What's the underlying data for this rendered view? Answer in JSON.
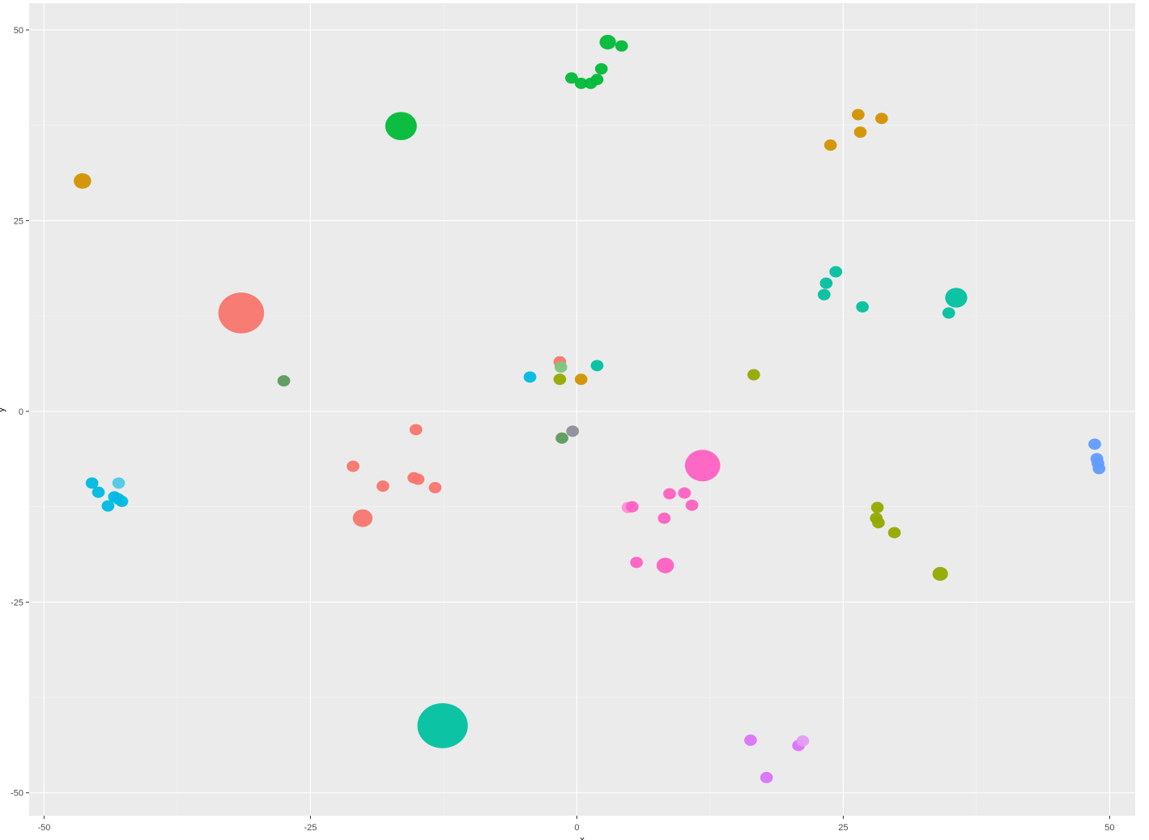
{
  "chart_data": {
    "type": "scatter",
    "xlabel": "x",
    "ylabel": "y",
    "xlim": [
      -51.4,
      52.4
    ],
    "ylim": [
      -53.0,
      53.5
    ],
    "x_ticks": [
      -50,
      -25,
      0,
      25,
      50
    ],
    "y_ticks": [
      -50,
      -25,
      0,
      25,
      50
    ],
    "x_tick_labels": [
      "-50",
      "-25",
      "0",
      "25",
      "50"
    ],
    "y_tick_labels": [
      "-50",
      "-25",
      "0",
      "25",
      "50"
    ],
    "grid": true,
    "panel_background": "#ebebeb",
    "grid_color": "#ffffff",
    "legend": "none",
    "points": [
      {
        "x": -31.5,
        "y": 12.9,
        "size": 1.0,
        "color": "#F8766D"
      },
      {
        "x": -20.1,
        "y": -14.0,
        "size": 0.45,
        "color": "#F8766D"
      },
      {
        "x": -21.0,
        "y": -7.2,
        "size": 0.3,
        "color": "#F8766D"
      },
      {
        "x": -18.2,
        "y": -9.8,
        "size": 0.3,
        "color": "#F8766D"
      },
      {
        "x": -15.1,
        "y": -2.4,
        "size": 0.3,
        "color": "#F8766D"
      },
      {
        "x": -15.3,
        "y": -8.7,
        "size": 0.3,
        "color": "#F8766D"
      },
      {
        "x": -14.9,
        "y": -8.9,
        "size": 0.3,
        "color": "#F8766D"
      },
      {
        "x": -13.3,
        "y": -10.0,
        "size": 0.3,
        "color": "#F8766D"
      },
      {
        "x": -1.6,
        "y": 6.5,
        "size": 0.3,
        "color": "#F8766D"
      },
      {
        "x": -46.4,
        "y": 30.2,
        "size": 0.4,
        "color": "#D39200"
      },
      {
        "x": 0.4,
        "y": 4.2,
        "size": 0.3,
        "color": "#D39200"
      },
      {
        "x": 23.8,
        "y": 34.9,
        "size": 0.3,
        "color": "#D39200"
      },
      {
        "x": 26.6,
        "y": 36.6,
        "size": 0.3,
        "color": "#D39200"
      },
      {
        "x": 26.4,
        "y": 38.9,
        "size": 0.3,
        "color": "#D39200"
      },
      {
        "x": 28.6,
        "y": 38.4,
        "size": 0.3,
        "color": "#D39200"
      },
      {
        "x": -1.6,
        "y": 4.2,
        "size": 0.3,
        "color": "#93AA00"
      },
      {
        "x": 16.6,
        "y": 4.8,
        "size": 0.3,
        "color": "#93AA00"
      },
      {
        "x": 28.2,
        "y": -12.6,
        "size": 0.3,
        "color": "#93AA00"
      },
      {
        "x": 28.1,
        "y": -14.0,
        "size": 0.3,
        "color": "#93AA00"
      },
      {
        "x": 28.3,
        "y": -14.6,
        "size": 0.3,
        "color": "#93AA00"
      },
      {
        "x": 29.8,
        "y": -15.9,
        "size": 0.3,
        "color": "#93AA00"
      },
      {
        "x": 34.1,
        "y": -21.3,
        "size": 0.36,
        "color": "#93AA00"
      },
      {
        "x": -16.5,
        "y": 37.4,
        "size": 0.7,
        "color": "#00BA38"
      },
      {
        "x": 2.9,
        "y": 48.4,
        "size": 0.38,
        "color": "#00BA38"
      },
      {
        "x": 4.2,
        "y": 47.9,
        "size": 0.3,
        "color": "#00BA38"
      },
      {
        "x": 2.3,
        "y": 44.9,
        "size": 0.3,
        "color": "#00BA38"
      },
      {
        "x": 1.9,
        "y": 43.5,
        "size": 0.3,
        "color": "#00BA38"
      },
      {
        "x": 1.3,
        "y": 43.0,
        "size": 0.3,
        "color": "#00BA38"
      },
      {
        "x": 0.4,
        "y": 43.0,
        "size": 0.3,
        "color": "#00BA38"
      },
      {
        "x": -0.5,
        "y": 43.7,
        "size": 0.3,
        "color": "#00BA38"
      },
      {
        "x": -27.5,
        "y": 4.0,
        "size": 0.3,
        "color": "#5C9A5C"
      },
      {
        "x": -1.4,
        "y": -3.5,
        "size": 0.3,
        "color": "#5C9A5C"
      },
      {
        "x": -1.5,
        "y": 5.8,
        "size": 0.3,
        "color": "#7CC77C"
      },
      {
        "x": -12.6,
        "y": -41.2,
        "size": 1.1,
        "color": "#00C19F"
      },
      {
        "x": 1.9,
        "y": 6.0,
        "size": 0.3,
        "color": "#00C19F"
      },
      {
        "x": 23.2,
        "y": 15.3,
        "size": 0.3,
        "color": "#00C19F"
      },
      {
        "x": 23.4,
        "y": 16.8,
        "size": 0.3,
        "color": "#00C19F"
      },
      {
        "x": 24.3,
        "y": 18.3,
        "size": 0.3,
        "color": "#00C19F"
      },
      {
        "x": 26.8,
        "y": 13.7,
        "size": 0.3,
        "color": "#00C19F"
      },
      {
        "x": 34.9,
        "y": 12.9,
        "size": 0.3,
        "color": "#00C19F"
      },
      {
        "x": 35.6,
        "y": 14.9,
        "size": 0.5,
        "color": "#00C19F"
      },
      {
        "x": -4.4,
        "y": 4.5,
        "size": 0.3,
        "color": "#00B9E3"
      },
      {
        "x": -45.5,
        "y": -9.4,
        "size": 0.3,
        "color": "#00B9E3"
      },
      {
        "x": -44.9,
        "y": -10.6,
        "size": 0.3,
        "color": "#00B9E3"
      },
      {
        "x": -44.0,
        "y": -12.4,
        "size": 0.3,
        "color": "#00B9E3"
      },
      {
        "x": -43.0,
        "y": -9.4,
        "size": 0.3,
        "color": "#4FC8E6"
      },
      {
        "x": -43.4,
        "y": -11.2,
        "size": 0.3,
        "color": "#00B9E3"
      },
      {
        "x": -43.0,
        "y": -11.5,
        "size": 0.3,
        "color": "#00B9E3"
      },
      {
        "x": -42.7,
        "y": -11.8,
        "size": 0.3,
        "color": "#00B9E3"
      },
      {
        "x": -0.4,
        "y": -2.6,
        "size": 0.3,
        "color": "#8E8E9A"
      },
      {
        "x": 48.6,
        "y": -4.3,
        "size": 0.3,
        "color": "#619CFF"
      },
      {
        "x": 48.8,
        "y": -6.2,
        "size": 0.3,
        "color": "#619CFF"
      },
      {
        "x": 48.9,
        "y": -6.8,
        "size": 0.3,
        "color": "#619CFF"
      },
      {
        "x": 49.0,
        "y": -7.5,
        "size": 0.3,
        "color": "#619CFF"
      },
      {
        "x": 16.3,
        "y": -43.1,
        "size": 0.3,
        "color": "#DB72FB"
      },
      {
        "x": 17.8,
        "y": -48.0,
        "size": 0.3,
        "color": "#DB72FB"
      },
      {
        "x": 20.8,
        "y": -43.8,
        "size": 0.3,
        "color": "#DB72FB"
      },
      {
        "x": 21.2,
        "y": -43.2,
        "size": 0.3,
        "color": "#E39CF5"
      },
      {
        "x": 11.8,
        "y": -7.1,
        "size": 0.78,
        "color": "#FF61C3"
      },
      {
        "x": 8.7,
        "y": -10.8,
        "size": 0.3,
        "color": "#FF61C3"
      },
      {
        "x": 10.1,
        "y": -10.7,
        "size": 0.3,
        "color": "#FF61C3"
      },
      {
        "x": 10.8,
        "y": -12.3,
        "size": 0.3,
        "color": "#FF61C3"
      },
      {
        "x": 8.2,
        "y": -14.0,
        "size": 0.3,
        "color": "#FF61C3"
      },
      {
        "x": 4.8,
        "y": -12.6,
        "size": 0.3,
        "color": "#FF8FD4"
      },
      {
        "x": 5.2,
        "y": -12.5,
        "size": 0.3,
        "color": "#FF61C3"
      },
      {
        "x": 5.6,
        "y": -19.8,
        "size": 0.3,
        "color": "#FF61C3"
      },
      {
        "x": 8.3,
        "y": -20.2,
        "size": 0.4,
        "color": "#FF61C3"
      }
    ]
  }
}
